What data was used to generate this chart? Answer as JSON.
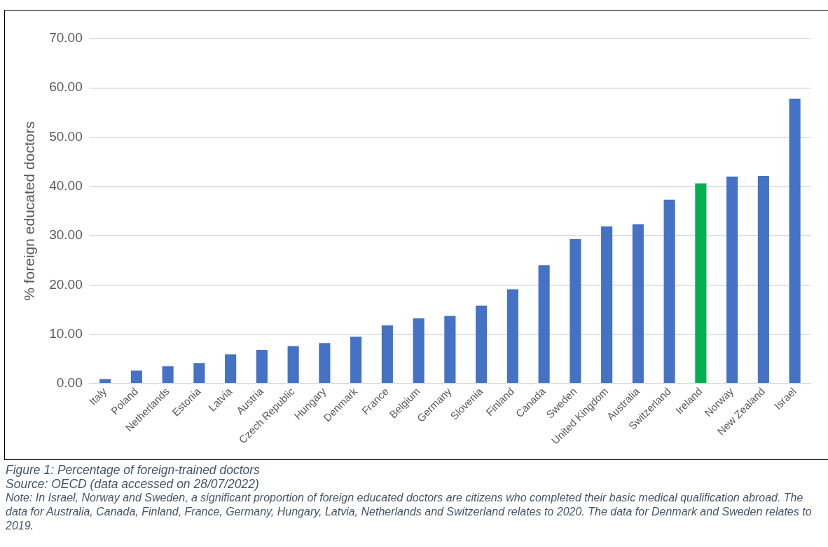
{
  "chart_data": {
    "type": "bar",
    "ylabel": "% foreign educated doctors",
    "categories": [
      "Italy",
      "Poland",
      "Netherlands",
      "Estonia",
      "Latvia",
      "Austria",
      "Czech Republic",
      "Hungary",
      "Denmark",
      "France",
      "Belgium",
      "Germany",
      "Slovenia",
      "Finland",
      "Canada",
      "Sweden",
      "United Kingdom",
      "Australia",
      "Switzerland",
      "Ireland",
      "Norway",
      "New Zealand",
      "Israel"
    ],
    "values": [
      0.9,
      2.6,
      3.5,
      4.1,
      5.9,
      6.8,
      7.6,
      8.2,
      9.5,
      11.8,
      13.2,
      13.7,
      15.8,
      19.1,
      24.0,
      29.3,
      31.9,
      32.3,
      37.3,
      40.6,
      42.0,
      42.1,
      57.8
    ],
    "colors": [
      "#4472c4",
      "#4472c4",
      "#4472c4",
      "#4472c4",
      "#4472c4",
      "#4472c4",
      "#4472c4",
      "#4472c4",
      "#4472c4",
      "#4472c4",
      "#4472c4",
      "#4472c4",
      "#4472c4",
      "#4472c4",
      "#4472c4",
      "#4472c4",
      "#4472c4",
      "#4472c4",
      "#4472c4",
      "#00b050",
      "#4472c4",
      "#4472c4",
      "#4472c4"
    ],
    "ylim": [
      0,
      70
    ],
    "yticks": [
      {
        "value": 0,
        "label": "0.00"
      },
      {
        "value": 10,
        "label": "10.00"
      },
      {
        "value": 20,
        "label": "20.00"
      },
      {
        "value": 30,
        "label": "30.00"
      },
      {
        "value": 40,
        "label": "40.00"
      },
      {
        "value": 50,
        "label": "50.00"
      },
      {
        "value": 60,
        "label": "60.00"
      },
      {
        "value": 70,
        "label": "70.00"
      }
    ],
    "grid": "y",
    "legend": false,
    "annotations": [
      "Figure 1: Percentage of foreign-trained doctors",
      "Source: OECD (data accessed on 28/07/2022)",
      "Note: In Israel, Norway and Sweden, a significant proportion of foreign educated doctors are citizens who completed their basic medical qualification abroad. The data for Australia, Canada, Finland, France, Germany, Hungary, Latvia, Netherlands and Switzerland relates to 2020. The data for Denmark and Sweden relates to 2019."
    ]
  }
}
